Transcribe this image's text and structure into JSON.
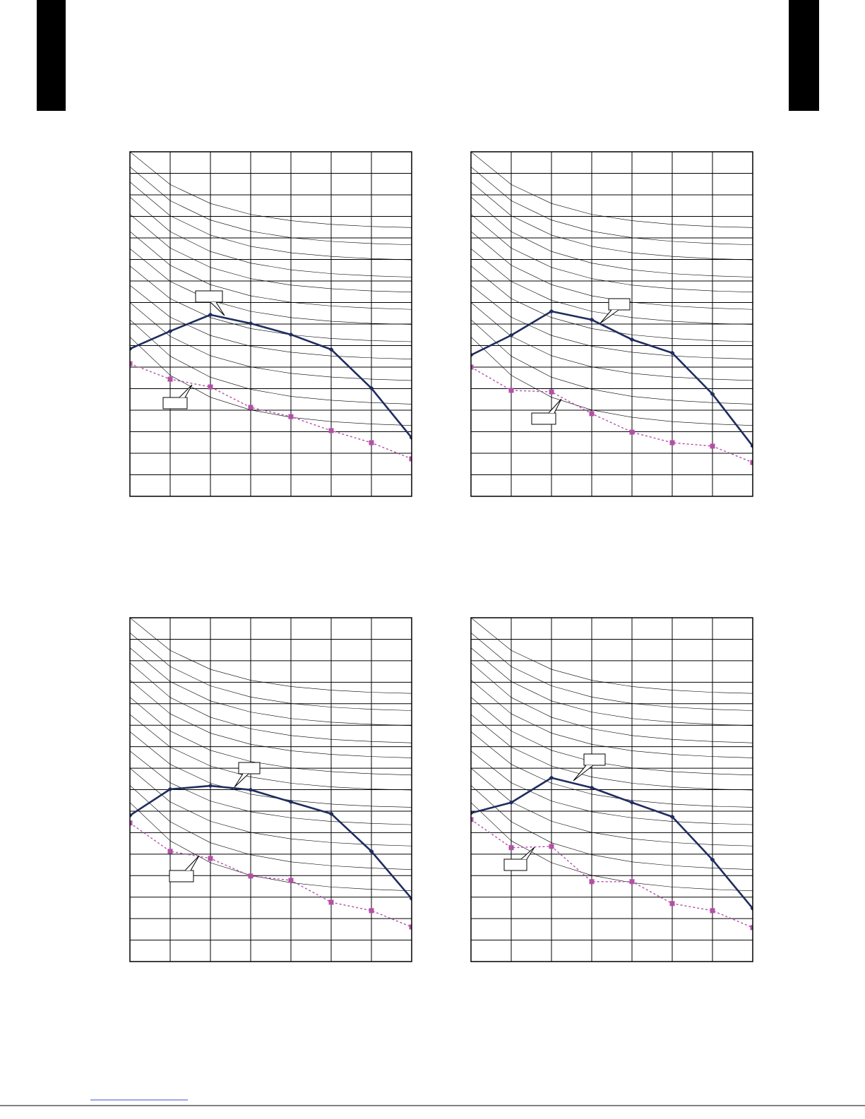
{
  "chart_data": [
    {
      "type": "line",
      "x": [
        0,
        1,
        2,
        3,
        4,
        5,
        6,
        7
      ],
      "xlim": [
        0,
        7
      ],
      "ylim": [
        0,
        16
      ],
      "xticks": [
        0,
        1,
        2,
        3,
        4,
        5,
        6,
        7
      ],
      "yticks": [
        0,
        1,
        2,
        3,
        4,
        5,
        6,
        7,
        8,
        9,
        10,
        11,
        12,
        13,
        14,
        15,
        16
      ],
      "grid": true,
      "series": [
        {
          "color": "#000000",
          "line_width": 0.6,
          "values": [
            16,
            14.48,
            13.6,
            13.09,
            12.8,
            12.63,
            12.53,
            12.48
          ]
        },
        {
          "color": "#000000",
          "line_width": 0.6,
          "values": [
            15.3,
            13.73,
            12.83,
            12.31,
            12.01,
            11.84,
            11.74,
            11.68
          ]
        },
        {
          "color": "#000000",
          "line_width": 0.6,
          "values": [
            14.6,
            13.03,
            12.13,
            11.61,
            11.31,
            11.14,
            11.04,
            10.98
          ]
        },
        {
          "color": "#000000",
          "line_width": 0.6,
          "values": [
            13.9,
            12.29,
            11.37,
            10.83,
            10.52,
            10.34,
            10.24,
            10.18
          ]
        },
        {
          "color": "#000000",
          "line_width": 0.6,
          "values": [
            13.1,
            11.53,
            10.63,
            10.11,
            9.81,
            9.64,
            9.54,
            9.48
          ]
        },
        {
          "color": "#000000",
          "line_width": 0.6,
          "values": [
            12.3,
            10.73,
            9.83,
            9.31,
            9.01,
            8.84,
            8.74,
            8.68
          ]
        },
        {
          "color": "#000000",
          "line_width": 0.6,
          "values": [
            11.5,
            9.98,
            9.1,
            8.59,
            8.3,
            8.13,
            8.03,
            7.98
          ]
        },
        {
          "color": "#000000",
          "line_width": 0.6,
          "values": [
            10.7,
            9.18,
            8.3,
            7.79,
            7.5,
            7.33,
            7.23,
            7.18
          ]
        },
        {
          "color": "#000000",
          "line_width": 0.6,
          "values": [
            9.8,
            8.32,
            7.47,
            6.97,
            6.69,
            6.52,
            6.43,
            6.37
          ]
        },
        {
          "color": "#000000",
          "line_width": 0.6,
          "values": [
            9.0,
            7.43,
            6.53,
            6.01,
            5.71,
            5.54,
            5.44,
            5.38
          ]
        },
        {
          "color": "#000000",
          "line_width": 0.6,
          "values": [
            8.2,
            6.51,
            5.53,
            4.97,
            4.64,
            4.46,
            4.35,
            4.28
          ]
        },
        {
          "color": "#000000",
          "line_width": 0.6,
          "values": [
            7.4,
            5.62,
            4.6,
            4.01,
            3.67,
            3.47,
            3.36,
            3.29
          ]
        },
        {
          "color": "#1f2d5e",
          "line_width": 2.6,
          "marker": "diamond",
          "values": [
            6.85,
            7.67,
            8.43,
            8.03,
            7.51,
            6.82,
            5.02,
            2.72
          ]
        },
        {
          "color": "#b44fa8",
          "line_width": 1.4,
          "dashed": true,
          "marker": "square",
          "values": [
            6.16,
            5.44,
            5.08,
            4.13,
            3.7,
            3.05,
            2.49,
            1.74
          ]
        }
      ]
    },
    {
      "type": "line",
      "x": [
        0,
        1,
        2,
        3,
        4,
        5,
        6,
        7
      ],
      "xlim": [
        0,
        7
      ],
      "ylim": [
        0,
        16
      ],
      "xticks": [
        0,
        1,
        2,
        3,
        4,
        5,
        6,
        7
      ],
      "yticks": [
        0,
        1,
        2,
        3,
        4,
        5,
        6,
        7,
        8,
        9,
        10,
        11,
        12,
        13,
        14,
        15,
        16
      ],
      "grid": true,
      "series": [
        {
          "color": "#000000",
          "line_width": 0.6,
          "values": [
            16,
            14.48,
            13.6,
            13.09,
            12.8,
            12.63,
            12.53,
            12.48
          ]
        },
        {
          "color": "#000000",
          "line_width": 0.6,
          "values": [
            15.3,
            13.73,
            12.83,
            12.31,
            12.01,
            11.84,
            11.74,
            11.68
          ]
        },
        {
          "color": "#000000",
          "line_width": 0.6,
          "values": [
            14.6,
            13.03,
            12.13,
            11.61,
            11.31,
            11.14,
            11.04,
            10.98
          ]
        },
        {
          "color": "#000000",
          "line_width": 0.6,
          "values": [
            13.9,
            12.29,
            11.37,
            10.83,
            10.52,
            10.34,
            10.24,
            10.18
          ]
        },
        {
          "color": "#000000",
          "line_width": 0.6,
          "values": [
            13.1,
            11.53,
            10.63,
            10.11,
            9.81,
            9.64,
            9.54,
            9.48
          ]
        },
        {
          "color": "#000000",
          "line_width": 0.6,
          "values": [
            12.3,
            10.73,
            9.83,
            9.31,
            9.01,
            8.84,
            8.74,
            8.68
          ]
        },
        {
          "color": "#000000",
          "line_width": 0.6,
          "values": [
            11.5,
            9.98,
            9.1,
            8.59,
            8.3,
            8.13,
            8.03,
            7.98
          ]
        },
        {
          "color": "#000000",
          "line_width": 0.6,
          "values": [
            10.7,
            9.18,
            8.3,
            7.79,
            7.5,
            7.33,
            7.23,
            7.18
          ]
        },
        {
          "color": "#000000",
          "line_width": 0.6,
          "values": [
            9.8,
            8.32,
            7.47,
            6.97,
            6.69,
            6.52,
            6.43,
            6.37
          ]
        },
        {
          "color": "#000000",
          "line_width": 0.6,
          "values": [
            9.0,
            7.43,
            6.53,
            6.01,
            5.71,
            5.54,
            5.44,
            5.38
          ]
        },
        {
          "color": "#000000",
          "line_width": 0.6,
          "values": [
            8.2,
            6.51,
            5.53,
            4.97,
            4.64,
            4.46,
            4.35,
            4.28
          ]
        },
        {
          "color": "#000000",
          "line_width": 0.6,
          "values": [
            7.4,
            5.62,
            4.6,
            4.01,
            3.67,
            3.47,
            3.36,
            3.29
          ]
        },
        {
          "color": "#1f2d5e",
          "line_width": 2.6,
          "marker": "diamond",
          "values": [
            6.56,
            7.48,
            8.59,
            8.2,
            7.28,
            6.66,
            4.75,
            2.33
          ]
        },
        {
          "color": "#b44fa8",
          "line_width": 1.4,
          "dashed": true,
          "marker": "square",
          "values": [
            6.0,
            4.92,
            4.85,
            3.84,
            2.98,
            2.49,
            2.33,
            1.57
          ]
        }
      ]
    },
    {
      "type": "line",
      "x": [
        0,
        1,
        2,
        3,
        4,
        5,
        6,
        7
      ],
      "xlim": [
        0,
        7
      ],
      "ylim": [
        0,
        16
      ],
      "xticks": [
        0,
        1,
        2,
        3,
        4,
        5,
        6,
        7
      ],
      "yticks": [
        0,
        1,
        2,
        3,
        4,
        5,
        6,
        7,
        8,
        9,
        10,
        11,
        12,
        13,
        14,
        15,
        16
      ],
      "grid": true,
      "series": [
        {
          "color": "#000000",
          "line_width": 0.6,
          "values": [
            16,
            14.48,
            13.6,
            13.09,
            12.8,
            12.63,
            12.53,
            12.48
          ]
        },
        {
          "color": "#000000",
          "line_width": 0.6,
          "values": [
            15.3,
            13.73,
            12.83,
            12.31,
            12.01,
            11.84,
            11.74,
            11.68
          ]
        },
        {
          "color": "#000000",
          "line_width": 0.6,
          "values": [
            14.6,
            13.03,
            12.13,
            11.61,
            11.31,
            11.14,
            11.04,
            10.98
          ]
        },
        {
          "color": "#000000",
          "line_width": 0.6,
          "values": [
            13.9,
            12.29,
            11.37,
            10.83,
            10.52,
            10.34,
            10.24,
            10.18
          ]
        },
        {
          "color": "#000000",
          "line_width": 0.6,
          "values": [
            13.1,
            11.53,
            10.63,
            10.11,
            9.81,
            9.64,
            9.54,
            9.48
          ]
        },
        {
          "color": "#000000",
          "line_width": 0.6,
          "values": [
            12.3,
            10.73,
            9.83,
            9.31,
            9.01,
            8.84,
            8.74,
            8.68
          ]
        },
        {
          "color": "#000000",
          "line_width": 0.6,
          "values": [
            11.5,
            9.98,
            9.1,
            8.59,
            8.3,
            8.13,
            8.03,
            7.98
          ]
        },
        {
          "color": "#000000",
          "line_width": 0.6,
          "values": [
            10.7,
            9.18,
            8.3,
            7.79,
            7.5,
            7.33,
            7.23,
            7.18
          ]
        },
        {
          "color": "#000000",
          "line_width": 0.6,
          "values": [
            9.8,
            8.32,
            7.47,
            6.97,
            6.69,
            6.52,
            6.43,
            6.37
          ]
        },
        {
          "color": "#000000",
          "line_width": 0.6,
          "values": [
            9.0,
            7.43,
            6.53,
            6.01,
            5.71,
            5.54,
            5.44,
            5.38
          ]
        },
        {
          "color": "#000000",
          "line_width": 0.6,
          "values": [
            8.2,
            6.51,
            5.53,
            4.97,
            4.64,
            4.46,
            4.35,
            4.28
          ]
        },
        {
          "color": "#000000",
          "line_width": 0.6,
          "values": [
            7.4,
            5.62,
            4.6,
            4.01,
            3.67,
            3.47,
            3.36,
            3.29
          ]
        },
        {
          "color": "#1f2d5e",
          "line_width": 2.6,
          "marker": "diamond",
          "values": [
            6.8,
            8.02,
            8.18,
            7.99,
            7.43,
            6.88,
            5.13,
            2.93
          ]
        },
        {
          "color": "#b44fa8",
          "line_width": 1.4,
          "dashed": true,
          "marker": "square",
          "values": [
            6.45,
            5.13,
            4.8,
            3.98,
            3.78,
            2.76,
            2.37,
            1.61
          ]
        }
      ]
    },
    {
      "type": "line",
      "x": [
        0,
        1,
        2,
        3,
        4,
        5,
        6,
        7
      ],
      "xlim": [
        0,
        7
      ],
      "ylim": [
        0,
        16
      ],
      "xticks": [
        0,
        1,
        2,
        3,
        4,
        5,
        6,
        7
      ],
      "yticks": [
        0,
        1,
        2,
        3,
        4,
        5,
        6,
        7,
        8,
        9,
        10,
        11,
        12,
        13,
        14,
        15,
        16
      ],
      "grid": true,
      "series": [
        {
          "color": "#000000",
          "line_width": 0.6,
          "values": [
            16,
            14.48,
            13.6,
            13.09,
            12.8,
            12.63,
            12.53,
            12.48
          ]
        },
        {
          "color": "#000000",
          "line_width": 0.6,
          "values": [
            15.3,
            13.73,
            12.83,
            12.31,
            12.01,
            11.84,
            11.74,
            11.68
          ]
        },
        {
          "color": "#000000",
          "line_width": 0.6,
          "values": [
            14.6,
            13.03,
            12.13,
            11.61,
            11.31,
            11.14,
            11.04,
            10.98
          ]
        },
        {
          "color": "#000000",
          "line_width": 0.6,
          "values": [
            13.9,
            12.29,
            11.37,
            10.83,
            10.52,
            10.34,
            10.24,
            10.18
          ]
        },
        {
          "color": "#000000",
          "line_width": 0.6,
          "values": [
            13.1,
            11.53,
            10.63,
            10.11,
            9.81,
            9.64,
            9.54,
            9.48
          ]
        },
        {
          "color": "#000000",
          "line_width": 0.6,
          "values": [
            12.3,
            10.73,
            9.83,
            9.31,
            9.01,
            8.84,
            8.74,
            8.68
          ]
        },
        {
          "color": "#000000",
          "line_width": 0.6,
          "values": [
            11.5,
            9.98,
            9.1,
            8.59,
            8.3,
            8.13,
            8.03,
            7.98
          ]
        },
        {
          "color": "#000000",
          "line_width": 0.6,
          "values": [
            10.7,
            9.18,
            8.3,
            7.79,
            7.5,
            7.33,
            7.23,
            7.18
          ]
        },
        {
          "color": "#000000",
          "line_width": 0.6,
          "values": [
            9.8,
            8.32,
            7.47,
            6.97,
            6.69,
            6.52,
            6.43,
            6.37
          ]
        },
        {
          "color": "#000000",
          "line_width": 0.6,
          "values": [
            9.0,
            7.43,
            6.53,
            6.01,
            5.71,
            5.54,
            5.44,
            5.38
          ]
        },
        {
          "color": "#000000",
          "line_width": 0.6,
          "values": [
            8.2,
            6.51,
            5.53,
            4.97,
            4.64,
            4.46,
            4.35,
            4.28
          ]
        },
        {
          "color": "#000000",
          "line_width": 0.6,
          "values": [
            7.4,
            5.62,
            4.6,
            4.01,
            3.67,
            3.47,
            3.36,
            3.29
          ]
        },
        {
          "color": "#1f2d5e",
          "line_width": 2.6,
          "marker": "diamond",
          "values": [
            6.91,
            7.4,
            8.55,
            8.09,
            7.4,
            6.74,
            4.74,
            2.47
          ]
        },
        {
          "color": "#b44fa8",
          "line_width": 1.4,
          "dashed": true,
          "marker": "square",
          "values": [
            6.61,
            5.3,
            5.36,
            3.72,
            3.72,
            2.7,
            2.37,
            1.58
          ]
        }
      ]
    }
  ]
}
